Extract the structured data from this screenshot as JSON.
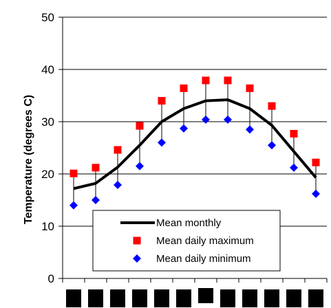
{
  "chart_data": {
    "type": "line",
    "title": "",
    "xlabel": "",
    "ylabel": "Temperature (degrees C)",
    "ylim": [
      0,
      50
    ],
    "yticks": [
      0,
      10,
      20,
      30,
      40,
      50
    ],
    "grid": "horizontal",
    "legend_placement": "bottom-center",
    "x": [
      1,
      2,
      3,
      4,
      5,
      6,
      7,
      8,
      9,
      10,
      11,
      12
    ],
    "series": [
      {
        "name": "Mean monthly",
        "style": "line",
        "color": "#000000",
        "values": [
          17.2,
          18.2,
          21.3,
          25.5,
          30.0,
          32.5,
          34.0,
          34.2,
          32.5,
          29.3,
          24.3,
          19.3
        ]
      },
      {
        "name": "Mean daily maximum",
        "style": "square-marker",
        "color": "#ff0000",
        "values": [
          20.1,
          21.2,
          24.6,
          29.2,
          34.0,
          36.4,
          37.9,
          37.9,
          36.4,
          33.0,
          27.7,
          22.2
        ]
      },
      {
        "name": "Mean daily minimum",
        "style": "diamond-marker",
        "color": "#0000ff",
        "values": [
          14.0,
          15.0,
          17.9,
          21.5,
          26.0,
          28.7,
          30.4,
          30.4,
          28.5,
          25.5,
          21.2,
          16.2
        ]
      }
    ]
  }
}
